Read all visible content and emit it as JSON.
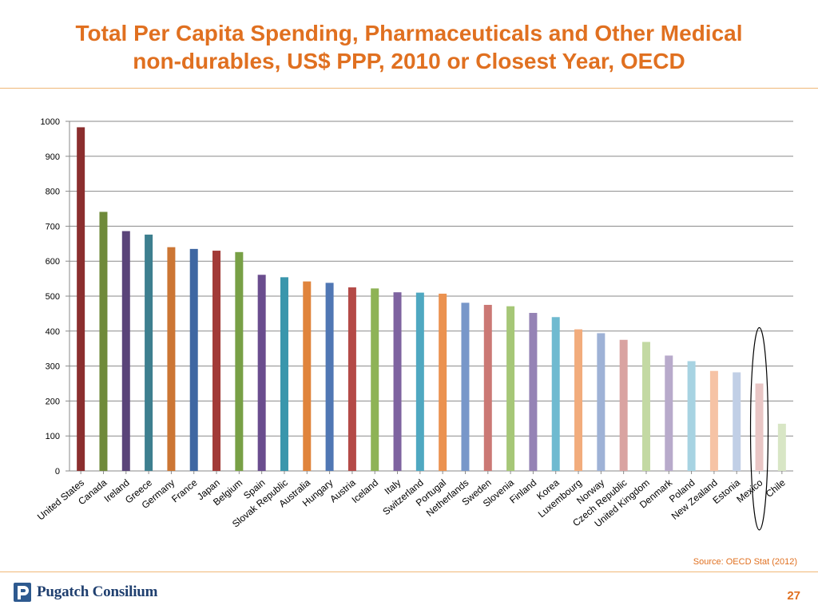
{
  "title_line1": "Total Per Capita Spending, Pharmaceuticals and Other Medical",
  "title_line2": "non-durables, US$ PPP, 2010 or Closest Year, OECD",
  "source": "Source: OECD Stat (2012)",
  "logo_text": "Pugatch Consilium",
  "page_number": "27",
  "colors": {
    "accent": "#e07020",
    "highlight_circle": "#000000"
  },
  "chart_data": {
    "type": "bar",
    "title": "",
    "xlabel": "",
    "ylabel": "",
    "ylim": [
      0,
      1000
    ],
    "yticks": [
      0,
      100,
      200,
      300,
      400,
      500,
      600,
      700,
      800,
      900,
      1000
    ],
    "grid": true,
    "highlighted_category": "Mexico",
    "categories": [
      "United States",
      "Canada",
      "Ireland",
      "Greece",
      "Germany",
      "France",
      "Japan",
      "Belgium",
      "Spain",
      "Slovak Republic",
      "Australia",
      "Hungary",
      "Austria",
      "Iceland",
      "Italy",
      "Switzerland",
      "Portugal",
      "Netherlands",
      "Sweden",
      "Slovenia",
      "Finland",
      "Korea",
      "Luxembourg",
      "Norway",
      "Czech Republic",
      "United Kingdom",
      "Denmark",
      "Poland",
      "New Zealand",
      "Estonia",
      "Mexico",
      "Chile"
    ],
    "values": [
      983,
      741,
      686,
      676,
      640,
      635,
      630,
      626,
      561,
      554,
      542,
      538,
      525,
      522,
      511,
      510,
      507,
      481,
      475,
      471,
      452,
      440,
      405,
      394,
      375,
      369,
      330,
      314,
      286,
      282,
      250,
      135
    ],
    "bar_colors": [
      "#8b2e2e",
      "#6f8a3a",
      "#5a4479",
      "#3d7f8f",
      "#cc7634",
      "#3f67a2",
      "#a23a37",
      "#78a046",
      "#6a4d8e",
      "#3a96ac",
      "#e0843c",
      "#5077b4",
      "#b44a47",
      "#8eb356",
      "#7e63a0",
      "#4fa8c1",
      "#eb9250",
      "#7897c9",
      "#cb7874",
      "#a6c777",
      "#9583b5",
      "#6fbad0",
      "#f2ac7c",
      "#9eb2d6",
      "#d9a3a1",
      "#c3d9a3",
      "#b8aacb",
      "#a7d3e2",
      "#f6c3a5",
      "#c1cfe6",
      "#e9c6c5",
      "#d8e6c5"
    ]
  }
}
